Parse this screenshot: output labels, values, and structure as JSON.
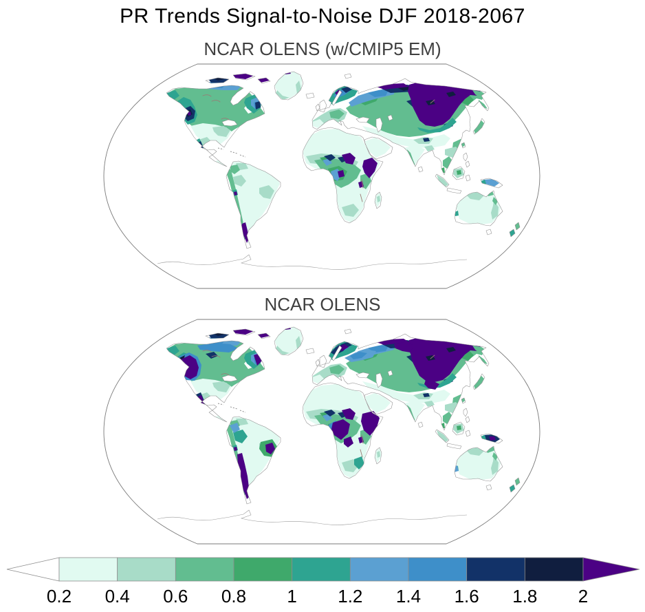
{
  "figure": {
    "title": "PR Trends Signal-to-Noise DJF 2018-2067"
  },
  "panels": [
    {
      "id": "top",
      "title": "NCAR OLENS (w/CMIP5 EM)"
    },
    {
      "id": "bottom",
      "title": "NCAR OLENS"
    }
  ],
  "colorbar": {
    "tick_labels": [
      "0.2",
      "0.4",
      "0.6",
      "0.8",
      "1",
      "1.2",
      "1.4",
      "1.6",
      "1.8",
      "2"
    ],
    "levels": [
      0.2,
      0.4,
      0.6,
      0.8,
      1,
      1.2,
      1.4,
      1.6,
      1.8,
      2
    ],
    "segment_colors": [
      "#E1FAF1",
      "#A8DCC8",
      "#62BD90",
      "#3FA96B",
      "#2EA491",
      "#5BA0D2",
      "#3E8FC9",
      "#123268",
      "#101E3F"
    ],
    "under_color": "#FFFFFF",
    "over_color": "#4B0184",
    "outline_color": "#8C8C8C"
  },
  "chart_data": {
    "type": "heatmap",
    "subtype": "filled-contour-world-map",
    "projection": "Robinson",
    "title": "PR Trends Signal-to-Noise DJF 2018-2067",
    "variable": "Precipitation (PR) trend signal-to-noise ratio",
    "season": "DJF",
    "period": "2018-2067",
    "levels": [
      0.2,
      0.4,
      0.6,
      0.8,
      1,
      1.2,
      1.4,
      1.6,
      1.8,
      2
    ],
    "colormap": {
      "under_lt_0.2": "#FFFFFF",
      "segments": [
        "#E1FAF1",
        "#A8DCC8",
        "#62BD90",
        "#3FA96B",
        "#2EA491",
        "#5BA0D2",
        "#3E8FC9",
        "#123268",
        "#101E3F"
      ],
      "over_gt_2": "#4B0184"
    },
    "panels": [
      {
        "title": "NCAR OLENS (w/CMIP5 EM)",
        "snr_gt_2_regions": [
          "Eastern Siberia (large area)",
          "Canadian Arctic Archipelago",
          "Alaska North Slope",
          "Scandinavia (spots)",
          "Sudan/Sahel (spots)",
          "Horn of Africa / Ethiopia",
          "Southern Andes and Chile strip",
          "Western Mexico (spot)",
          "Western US interior (small spot)",
          "Northern Greenland (dot)"
        ],
        "snr_1_to_2_regions": [
          "Most of Canada and Quebec/Labrador",
          "Western Siberia",
          "Scandinavia",
          "Tibet (spot)",
          "Congo Basin (spots)",
          "New Guinea"
        ],
        "snr_lt_1_regions": [
          "Contiguous US interior",
          "Most of South America",
          "Sahara and Arabia",
          "India and China",
          "Australia",
          "Western Europe"
        ]
      },
      {
        "title": "NCAR OLENS",
        "snr_gt_2_regions": [
          "Eastern Siberia (larger)",
          "Western US Great Basin (large blob)",
          "Western Mexico",
          "Canadian Arctic and Quebec",
          "Scandinavia",
          "Eastern Europe (spots)",
          "Congo Basin (large blobs)",
          "Horn of Africa / Ethiopia",
          "Andes from Peru to Patagonia",
          "Eastern Brazil (spot)",
          "New Guinea"
        ],
        "snr_1_to_2_regions": [
          "Canada interior",
          "Eastern Europe and Western Siberia",
          "Western Amazon",
          "Southeastern Africa",
          "New Zealand"
        ],
        "snr_lt_1_regions": [
          "US Southeast",
          "Sahara and Arabia",
          "India and China",
          "Most of Australia",
          "Iberia and Mediterranean"
        ]
      }
    ]
  }
}
